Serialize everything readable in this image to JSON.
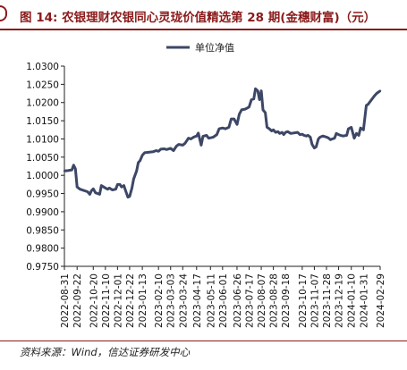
{
  "title": {
    "prefix": "图 14:",
    "text": "农银理财农银同心灵珑价值精选第 28 期(金穗财富)（元）"
  },
  "source": "资料来源：Wind，信达证券研发中心",
  "colors": {
    "line": "#3d4766",
    "title": "#8b1a1a"
  },
  "chart_data": {
    "type": "line",
    "title": "",
    "xlabel": "",
    "ylabel": "",
    "ylim": [
      0.975,
      1.03
    ],
    "yticks": [
      "1.0300",
      "1.0250",
      "1.0200",
      "1.0150",
      "1.0100",
      "1.0050",
      "1.0000",
      "0.9950",
      "0.9900",
      "0.9850",
      "0.9800",
      "0.9750"
    ],
    "xlim": [
      "2022-08-31",
      "2024-02-29"
    ],
    "xticks": [
      "2022-08-31",
      "2022-09-22",
      "2022-10-20",
      "2022-11-10",
      "2022-12-01",
      "2022-12-22",
      "2023-01-13",
      "2023-02-10",
      "2023-03-03",
      "2023-03-24",
      "2023-04-17",
      "2023-05-11",
      "2023-06-01",
      "2023-06-26",
      "2023-07-17",
      "2023-08-07",
      "2023-08-28",
      "2023-09-18",
      "2023-10-17",
      "2023-11-07",
      "2023-11-28",
      "2023-12-19",
      "2024-01-10",
      "2024-01-31",
      "2024-02-29"
    ],
    "legend": "top-center",
    "grid": false,
    "series": [
      {
        "name": "单位净值",
        "points": [
          [
            "2022-08-31",
            1.0012
          ],
          [
            "2022-09-06",
            1.0013
          ],
          [
            "2022-09-13",
            1.0015
          ],
          [
            "2022-09-16",
            1.0028
          ],
          [
            "2022-09-19",
            1.0018
          ],
          [
            "2022-09-22",
            0.9968
          ],
          [
            "2022-09-27",
            0.9962
          ],
          [
            "2022-10-10",
            0.9955
          ],
          [
            "2022-10-14",
            0.9948
          ],
          [
            "2022-10-17",
            0.9958
          ],
          [
            "2022-10-20",
            0.9963
          ],
          [
            "2022-10-24",
            0.9952
          ],
          [
            "2022-10-31",
            0.9948
          ],
          [
            "2022-11-03",
            0.9972
          ],
          [
            "2022-11-07",
            0.9968
          ],
          [
            "2022-11-10",
            0.9965
          ],
          [
            "2022-11-14",
            0.9962
          ],
          [
            "2022-11-17",
            0.9965
          ],
          [
            "2022-11-22",
            0.996
          ],
          [
            "2022-11-28",
            0.9962
          ],
          [
            "2022-12-01",
            0.9975
          ],
          [
            "2022-12-05",
            0.9975
          ],
          [
            "2022-12-08",
            0.9968
          ],
          [
            "2022-12-12",
            0.9972
          ],
          [
            "2022-12-15",
            0.9958
          ],
          [
            "2022-12-19",
            0.994
          ],
          [
            "2022-12-22",
            0.9942
          ],
          [
            "2022-12-26",
            0.9965
          ],
          [
            "2022-12-29",
            0.999
          ],
          [
            "2023-01-03",
            1.0012
          ],
          [
            "2023-01-06",
            1.0035
          ],
          [
            "2023-01-09",
            1.004
          ],
          [
            "2023-01-13",
            1.0055
          ],
          [
            "2023-01-17",
            1.0062
          ],
          [
            "2023-02-01",
            1.0065
          ],
          [
            "2023-02-06",
            1.0068
          ],
          [
            "2023-02-10",
            1.0066
          ],
          [
            "2023-02-14",
            1.0072
          ],
          [
            "2023-02-20",
            1.0073
          ],
          [
            "2023-02-24",
            1.0071
          ],
          [
            "2023-03-03",
            1.0074
          ],
          [
            "2023-03-08",
            1.0068
          ],
          [
            "2023-03-13",
            1.008
          ],
          [
            "2023-03-17",
            1.0085
          ],
          [
            "2023-03-24",
            1.0083
          ],
          [
            "2023-03-28",
            1.0088
          ],
          [
            "2023-04-03",
            1.0102
          ],
          [
            "2023-04-07",
            1.01
          ],
          [
            "2023-04-12",
            1.0105
          ],
          [
            "2023-04-17",
            1.0108
          ],
          [
            "2023-04-20",
            1.0116
          ],
          [
            "2023-04-25",
            1.0083
          ],
          [
            "2023-04-28",
            1.0107
          ],
          [
            "2023-05-04",
            1.011
          ],
          [
            "2023-05-08",
            1.0102
          ],
          [
            "2023-05-11",
            1.0103
          ],
          [
            "2023-05-16",
            1.0105
          ],
          [
            "2023-05-22",
            1.0112
          ],
          [
            "2023-05-26",
            1.0128
          ],
          [
            "2023-06-01",
            1.013
          ],
          [
            "2023-06-06",
            1.0128
          ],
          [
            "2023-06-12",
            1.0132
          ],
          [
            "2023-06-16",
            1.0155
          ],
          [
            "2023-06-21",
            1.0155
          ],
          [
            "2023-06-26",
            1.014
          ],
          [
            "2023-06-30",
            1.0168
          ],
          [
            "2023-07-04",
            1.018
          ],
          [
            "2023-07-10",
            1.0182
          ],
          [
            "2023-07-14",
            1.0185
          ],
          [
            "2023-07-17",
            1.0188
          ],
          [
            "2023-07-21",
            1.0208
          ],
          [
            "2023-07-25",
            1.021
          ],
          [
            "2023-07-28",
            1.0238
          ],
          [
            "2023-08-01",
            1.0232
          ],
          [
            "2023-08-04",
            1.0208
          ],
          [
            "2023-08-07",
            1.0232
          ],
          [
            "2023-08-10",
            1.018
          ],
          [
            "2023-08-14",
            1.0172
          ],
          [
            "2023-08-17",
            1.0132
          ],
          [
            "2023-08-21",
            1.0128
          ],
          [
            "2023-08-25",
            1.0122
          ],
          [
            "2023-08-28",
            1.0125
          ],
          [
            "2023-09-01",
            1.0118
          ],
          [
            "2023-09-05",
            1.012
          ],
          [
            "2023-09-08",
            1.0115
          ],
          [
            "2023-09-12",
            1.0118
          ],
          [
            "2023-09-15",
            1.0112
          ],
          [
            "2023-09-18",
            1.0118
          ],
          [
            "2023-09-22",
            1.012
          ],
          [
            "2023-09-27",
            1.0115
          ],
          [
            "2023-10-09",
            1.0118
          ],
          [
            "2023-10-13",
            1.0112
          ],
          [
            "2023-10-17",
            1.0113
          ],
          [
            "2023-10-20",
            1.011
          ],
          [
            "2023-10-24",
            1.0108
          ],
          [
            "2023-10-27",
            1.011
          ],
          [
            "2023-10-31",
            1.0105
          ],
          [
            "2023-11-03",
            1.0085
          ],
          [
            "2023-11-07",
            1.0075
          ],
          [
            "2023-11-10",
            1.0078
          ],
          [
            "2023-11-14",
            1.01
          ],
          [
            "2023-11-17",
            1.0105
          ],
          [
            "2023-11-22",
            1.0108
          ],
          [
            "2023-11-28",
            1.0105
          ],
          [
            "2023-12-01",
            1.0103
          ],
          [
            "2023-12-05",
            1.0098
          ],
          [
            "2023-12-08",
            1.01
          ],
          [
            "2023-12-12",
            1.0102
          ],
          [
            "2023-12-15",
            1.0115
          ],
          [
            "2023-12-19",
            1.0112
          ],
          [
            "2023-12-22",
            1.011
          ],
          [
            "2023-12-27",
            1.0108
          ],
          [
            "2024-01-02",
            1.011
          ],
          [
            "2024-01-05",
            1.0128
          ],
          [
            "2024-01-08",
            1.013
          ],
          [
            "2024-01-10",
            1.0132
          ],
          [
            "2024-01-15",
            1.0102
          ],
          [
            "2024-01-19",
            1.0115
          ],
          [
            "2024-01-23",
            1.011
          ],
          [
            "2024-01-26",
            1.013
          ],
          [
            "2024-01-31",
            1.0125
          ],
          [
            "2024-02-05",
            1.0192
          ],
          [
            "2024-02-08",
            1.0195
          ],
          [
            "2024-02-19",
            1.0218
          ],
          [
            "2024-02-23",
            1.0225
          ],
          [
            "2024-02-29",
            1.0232
          ]
        ]
      }
    ]
  }
}
